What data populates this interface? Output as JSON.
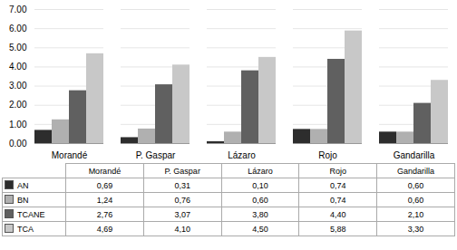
{
  "chart_data": {
    "type": "bar",
    "categories": [
      "Morandé",
      "P. Gaspar",
      "Lázaro",
      "Rojo",
      "Gandarilla"
    ],
    "series": [
      {
        "name": "AN",
        "color": "#2d2d2d",
        "values": [
          0.69,
          0.31,
          0.1,
          0.74,
          0.6
        ],
        "value_labels": [
          "0,69",
          "0,31",
          "0,10",
          "0,74",
          "0,60"
        ]
      },
      {
        "name": "BN",
        "color": "#b0b0b0",
        "values": [
          1.24,
          0.76,
          0.6,
          0.74,
          0.6
        ],
        "value_labels": [
          "1,24",
          "0,76",
          "0,60",
          "0,74",
          "0,60"
        ]
      },
      {
        "name": "TCANE",
        "color": "#606060",
        "values": [
          2.76,
          3.07,
          3.8,
          4.4,
          2.1
        ],
        "value_labels": [
          "2,76",
          "3,07",
          "3,80",
          "4,40",
          "2,10"
        ]
      },
      {
        "name": "TCA",
        "color": "#c8c8c8",
        "values": [
          4.69,
          4.1,
          4.5,
          5.88,
          3.3
        ],
        "value_labels": [
          "4,69",
          "4,10",
          "4,50",
          "5,88",
          "3,30"
        ]
      }
    ],
    "ylim": [
      0,
      7.0
    ],
    "yticks": [
      {
        "value": 0,
        "label": "0.00"
      },
      {
        "value": 1,
        "label": "1.00"
      },
      {
        "value": 2,
        "label": "2.00"
      },
      {
        "value": 3,
        "label": "3.00"
      },
      {
        "value": 4,
        "label": "4.00"
      },
      {
        "value": 5,
        "label": "5.00"
      },
      {
        "value": 6,
        "label": "6.00"
      },
      {
        "value": 7,
        "label": "7.00"
      }
    ],
    "grid": true,
    "legend": "bottom"
  }
}
